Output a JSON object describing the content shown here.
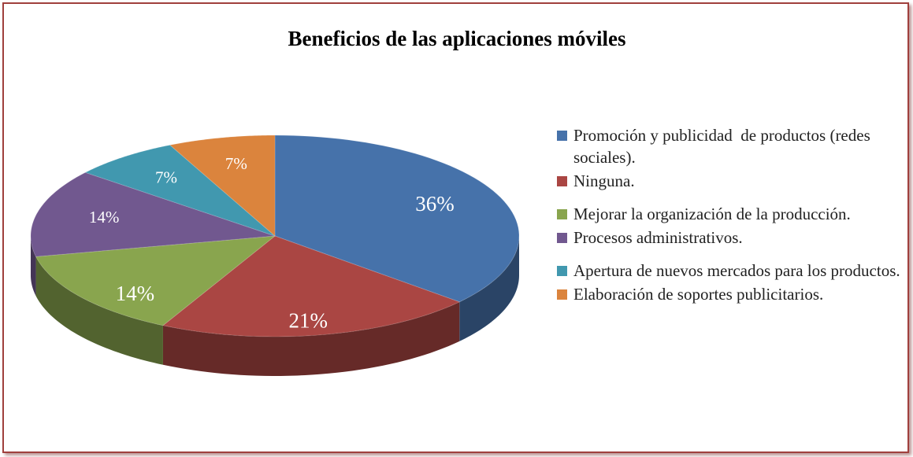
{
  "chart_data": {
    "type": "pie3d",
    "title": "Beneficios de las aplicaciones móviles",
    "categories": [
      "Promoción y publicidad  de productos (redes sociales).",
      "Ninguna.",
      "Mejorar la organización de la producción.",
      "Procesos administrativos.",
      "Apertura de nuevos mercados para los productos.",
      "Elaboración de soportes publicitarios."
    ],
    "values": [
      36,
      21,
      14,
      14,
      7,
      7
    ],
    "value_labels": [
      "36%",
      "21%",
      "14%",
      "14%",
      "7%",
      "7%"
    ],
    "colors": [
      "#4672aa",
      "#aa4643",
      "#89a54e",
      "#71588f",
      "#4198af",
      "#db843d"
    ],
    "legend": "right"
  }
}
